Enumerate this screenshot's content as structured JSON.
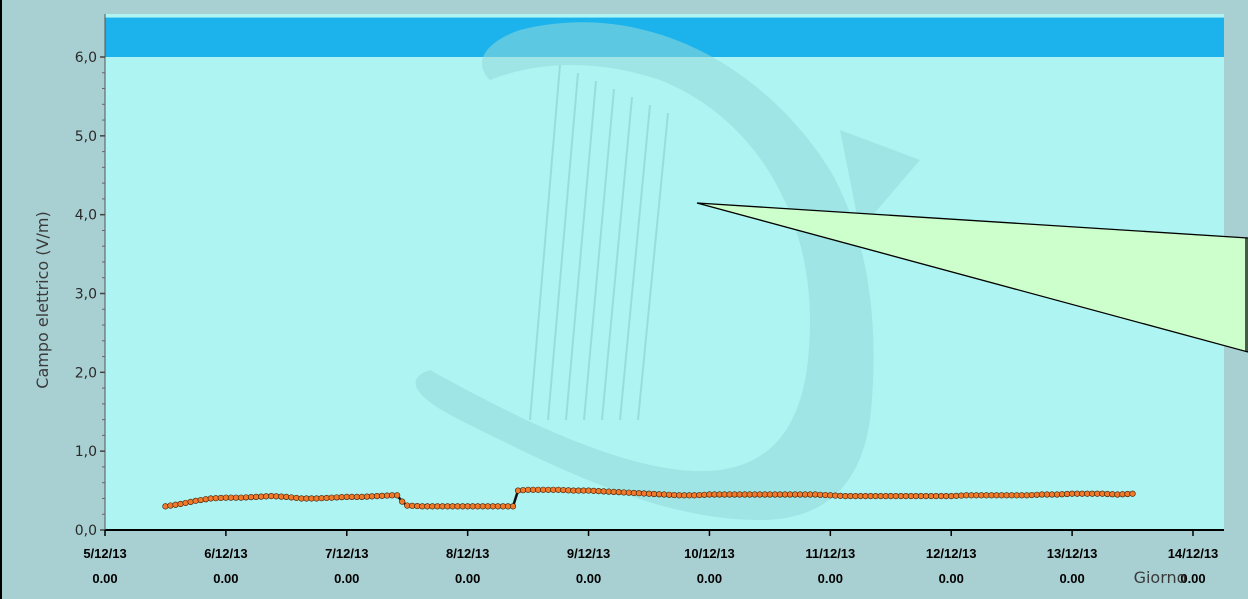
{
  "colors": {
    "page_background": "#a8cfd2",
    "plot_background": "#adf4f3",
    "limit_band": "#1cb3ec",
    "series_marker": "#f07a2a",
    "series_marker_stroke": "#3a1a00",
    "series_line": "#101010",
    "callout_fill": "#ccffcc",
    "watermark": "#93d8d8"
  },
  "chart_data": {
    "type": "scatter",
    "title": "",
    "ylabel": "Campo elettrico (V/m)",
    "xlabel": "Giorno",
    "ylim": [
      0,
      6.5
    ],
    "xlim": [
      "5/12/13 0.00",
      "14/12/13 0.00"
    ],
    "limit_band": {
      "from": 6.0,
      "to": 6.5
    },
    "yticks": [
      "0,0",
      "1,0",
      "2,0",
      "3,0",
      "4,0",
      "5,0",
      "6,0"
    ],
    "xticks": [
      {
        "date": "5/12/13",
        "time": "0.00"
      },
      {
        "date": "6/12/13",
        "time": "0.00"
      },
      {
        "date": "7/12/13",
        "time": "0.00"
      },
      {
        "date": "8/12/13",
        "time": "0.00"
      },
      {
        "date": "9/12/13",
        "time": "0.00"
      },
      {
        "date": "10/12/13",
        "time": "0.00"
      },
      {
        "date": "11/12/13",
        "time": "0.00"
      },
      {
        "date": "12/12/13",
        "time": "0.00"
      },
      {
        "date": "13/12/13",
        "time": "0.00"
      },
      {
        "date": "14/12/13",
        "time": "0.00"
      }
    ],
    "series": [
      {
        "points": [
          [
            "5/12/13 12.00",
            0.3
          ],
          [
            "5/12/13 15.00",
            0.33
          ],
          [
            "5/12/13 18.00",
            0.37
          ],
          [
            "5/12/13 21.00",
            0.4
          ],
          [
            "6/12/13 0.00",
            0.41
          ],
          [
            "6/12/13 3.00",
            0.41
          ],
          [
            "6/12/13 6.00",
            0.42
          ],
          [
            "6/12/13 9.00",
            0.43
          ],
          [
            "6/12/13 12.00",
            0.42
          ],
          [
            "6/12/13 15.00",
            0.4
          ],
          [
            "6/12/13 18.00",
            0.4
          ],
          [
            "6/12/13 21.00",
            0.41
          ],
          [
            "7/12/13 0.00",
            0.42
          ],
          [
            "7/12/13 3.00",
            0.42
          ],
          [
            "7/12/13 6.00",
            0.43
          ],
          [
            "7/12/13 9.00",
            0.44
          ],
          [
            "7/12/13 10.00",
            0.44
          ],
          [
            "7/12/13 11.00",
            0.36
          ],
          [
            "7/12/13 12.00",
            0.31
          ],
          [
            "7/12/13 15.00",
            0.3
          ],
          [
            "7/12/13 18.00",
            0.3
          ],
          [
            "7/12/13 21.00",
            0.3
          ],
          [
            "8/12/13 0.00",
            0.3
          ],
          [
            "8/12/13 3.00",
            0.3
          ],
          [
            "8/12/13 6.00",
            0.3
          ],
          [
            "8/12/13 9.00",
            0.3
          ],
          [
            "8/12/13 10.00",
            0.5
          ],
          [
            "8/12/13 12.00",
            0.51
          ],
          [
            "8/12/13 15.00",
            0.51
          ],
          [
            "8/12/13 18.00",
            0.51
          ],
          [
            "8/12/13 21.00",
            0.5
          ],
          [
            "9/12/13 0.00",
            0.5
          ],
          [
            "9/12/13 3.00",
            0.49
          ],
          [
            "9/12/13 6.00",
            0.48
          ],
          [
            "9/12/13 9.00",
            0.47
          ],
          [
            "9/12/13 12.00",
            0.46
          ],
          [
            "9/12/13 15.00",
            0.45
          ],
          [
            "9/12/13 18.00",
            0.44
          ],
          [
            "9/12/13 21.00",
            0.44
          ],
          [
            "10/12/13 0.00",
            0.45
          ],
          [
            "10/12/13 3.00",
            0.45
          ],
          [
            "10/12/13 6.00",
            0.45
          ],
          [
            "10/12/13 9.00",
            0.45
          ],
          [
            "10/12/13 12.00",
            0.45
          ],
          [
            "10/12/13 15.00",
            0.45
          ],
          [
            "10/12/13 18.00",
            0.45
          ],
          [
            "10/12/13 21.00",
            0.45
          ],
          [
            "11/12/13 0.00",
            0.44
          ],
          [
            "11/12/13 3.00",
            0.43
          ],
          [
            "11/12/13 6.00",
            0.43
          ],
          [
            "11/12/13 9.00",
            0.43
          ],
          [
            "11/12/13 12.00",
            0.43
          ],
          [
            "11/12/13 15.00",
            0.43
          ],
          [
            "11/12/13 18.00",
            0.43
          ],
          [
            "11/12/13 21.00",
            0.43
          ],
          [
            "12/12/13 0.00",
            0.43
          ],
          [
            "12/12/13 3.00",
            0.44
          ],
          [
            "12/12/13 6.00",
            0.44
          ],
          [
            "12/12/13 9.00",
            0.44
          ],
          [
            "12/12/13 12.00",
            0.44
          ],
          [
            "12/12/13 15.00",
            0.44
          ],
          [
            "12/12/13 18.00",
            0.45
          ],
          [
            "12/12/13 21.00",
            0.45
          ],
          [
            "13/12/13 0.00",
            0.46
          ],
          [
            "13/12/13 3.00",
            0.46
          ],
          [
            "13/12/13 6.00",
            0.46
          ],
          [
            "13/12/13 9.00",
            0.45
          ],
          [
            "13/12/13 12.00",
            0.46
          ]
        ]
      }
    ]
  }
}
